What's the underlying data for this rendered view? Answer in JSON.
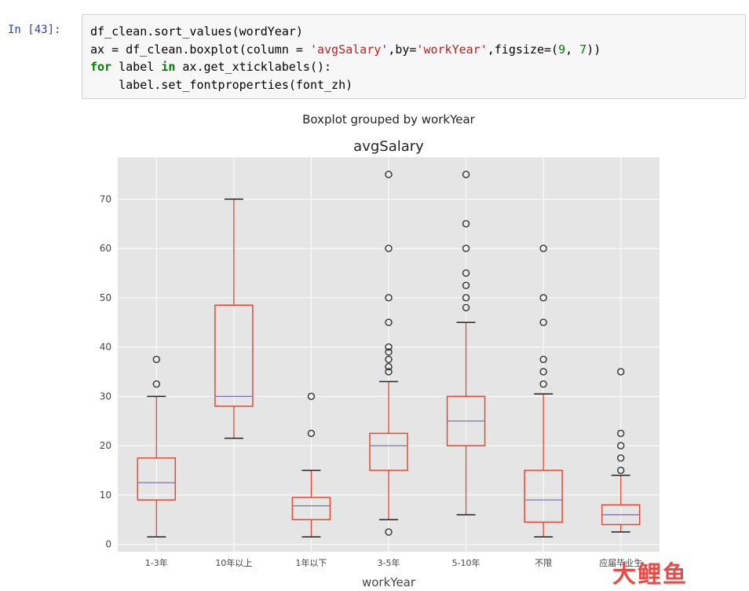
{
  "notebook": {
    "prompt": "In [43]:",
    "code_lines": [
      [
        {
          "t": "df_clean.sort_values(wordYear)",
          "c": ""
        }
      ],
      [
        {
          "t": "ax = df_clean.boxplot(column = ",
          "c": ""
        },
        {
          "t": "'avgSalary'",
          "c": "str"
        },
        {
          "t": ",by=",
          "c": ""
        },
        {
          "t": "'workYear'",
          "c": "str"
        },
        {
          "t": ",figsize=(",
          "c": ""
        },
        {
          "t": "9",
          "c": "num"
        },
        {
          "t": ", ",
          "c": ""
        },
        {
          "t": "7",
          "c": "num"
        },
        {
          "t": "))",
          "c": ""
        }
      ],
      [
        {
          "t": "for",
          "c": "kw"
        },
        {
          "t": " label ",
          "c": ""
        },
        {
          "t": "in",
          "c": "kw"
        },
        {
          "t": " ax.get_xticklabels():",
          "c": ""
        }
      ],
      [
        {
          "t": "    label.set_fontproperties(font_zh)",
          "c": ""
        }
      ]
    ]
  },
  "chart_data": {
    "type": "boxplot",
    "suptitle": "Boxplot grouped by workYear",
    "title": "avgSalary",
    "xlabel": "workYear",
    "ylabel": "",
    "ylim": [
      -1.5,
      78.5
    ],
    "yticks": [
      0,
      10,
      20,
      30,
      40,
      50,
      60,
      70
    ],
    "grid": true,
    "colors": {
      "plot_bg": "#e5e5e5",
      "grid": "#ffffff",
      "box": "#e24a33",
      "median": "#8172b2",
      "outlier": "#333333",
      "axis_text": "#444444"
    },
    "categories": [
      "1-3年",
      "10年以上",
      "1年以下",
      "3-5年",
      "5-10年",
      "不限",
      "应届毕业生"
    ],
    "boxes": [
      {
        "label": "1-3年",
        "whisker_low": 1.5,
        "q1": 9,
        "median": 12.5,
        "q3": 17.5,
        "whisker_high": 30,
        "outliers": [
          32.5,
          37.5
        ]
      },
      {
        "label": "10年以上",
        "whisker_low": 21.5,
        "q1": 28,
        "median": 30,
        "q3": 48.5,
        "whisker_high": 70,
        "outliers": []
      },
      {
        "label": "1年以下",
        "whisker_low": 1.5,
        "q1": 5,
        "median": 7.8,
        "q3": 9.5,
        "whisker_high": 15,
        "outliers": [
          22.5,
          30
        ]
      },
      {
        "label": "3-5年",
        "whisker_low": 5,
        "q1": 15,
        "median": 20,
        "q3": 22.5,
        "whisker_high": 33,
        "outliers": [
          2.5,
          35,
          36,
          37.5,
          39,
          40,
          45,
          50,
          60,
          75
        ]
      },
      {
        "label": "5-10年",
        "whisker_low": 6,
        "q1": 20,
        "median": 25,
        "q3": 30,
        "whisker_high": 45,
        "outliers": [
          48,
          50,
          52.5,
          55,
          60,
          65,
          75
        ]
      },
      {
        "label": "不限",
        "whisker_low": 1.5,
        "q1": 4.5,
        "median": 9,
        "q3": 15,
        "whisker_high": 30.5,
        "outliers": [
          32.5,
          35,
          37.5,
          45,
          50,
          60
        ]
      },
      {
        "label": "应届毕业生",
        "whisker_low": 2.5,
        "q1": 4,
        "median": 6,
        "q3": 8,
        "whisker_high": 14,
        "outliers": [
          15,
          17.5,
          20,
          22.5,
          35
        ]
      }
    ]
  },
  "watermark": "大鲤鱼"
}
